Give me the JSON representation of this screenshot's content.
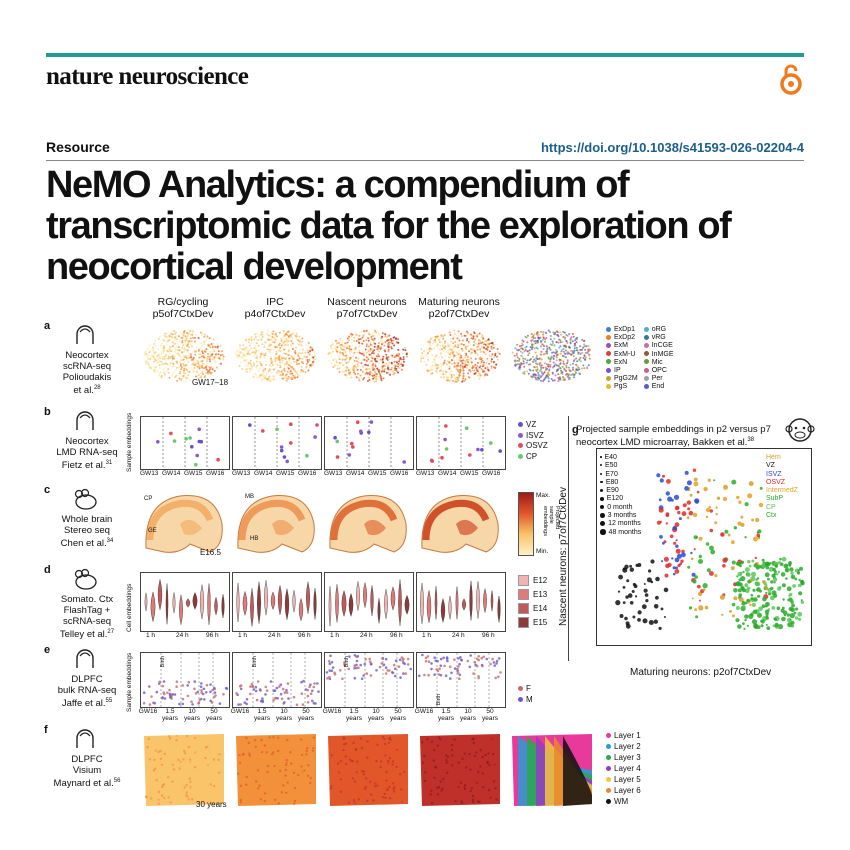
{
  "journal": "nature neuroscience",
  "section": "Resource",
  "doi": "https://doi.org/10.1038/s41593-026-02204-4",
  "title": "NeMO Analytics: a compendium of transcriptomic data for the exploration of neocortical development",
  "figure": {
    "columns": [
      {
        "l1": "RG/cycling",
        "l2": "p5of7CtxDev"
      },
      {
        "l1": "IPC",
        "l2": "p4of7CtxDev"
      },
      {
        "l1": "Nascent neurons",
        "l2": "p7of7CtxDev"
      },
      {
        "l1": "Maturing neurons",
        "l2": "p2of7CtxDev"
      }
    ],
    "rows": [
      {
        "panel": "a",
        "lines": [
          "Neocortex",
          "scRNA-seq",
          "Polioudakis",
          "et al."
        ],
        "ref": "28",
        "note": "GW17–18"
      },
      {
        "panel": "b",
        "lines": [
          "Neocortex",
          "LMD RNA-seq",
          "Fietz et al."
        ],
        "ref": "31",
        "ylabel": "Sample embeddings"
      },
      {
        "panel": "c",
        "lines": [
          "Whole brain",
          "Stereo seq",
          "Chen et al."
        ],
        "ref": "34",
        "note": "E16.5"
      },
      {
        "panel": "d",
        "lines": [
          "Somato. Ctx",
          "FlashTag +",
          "scRNA-seq",
          "Telley et al."
        ],
        "ref": "27",
        "ylabel": "Cell embeddings"
      },
      {
        "panel": "e",
        "lines": [
          "DLPFC",
          "bulk RNA-seq",
          "Jaffe et al."
        ],
        "ref": "55",
        "ylabel": "Sample embeddings"
      },
      {
        "panel": "f",
        "lines": [
          "DLPFC",
          "Visium",
          "Maynard et al."
        ],
        "ref": "56",
        "note": "30 years"
      }
    ],
    "a_legend": [
      "ExDp1",
      "ExDp2",
      "ExM",
      "ExM-U",
      "ExN",
      "IP",
      "PgG2M",
      "PgS",
      "oRG",
      "vRG",
      "InCGE",
      "InMGE",
      "Mic",
      "OPC",
      "Per",
      "End"
    ],
    "a_colors": [
      "#3b7dd8",
      "#e87e2a",
      "#9b4fb4",
      "#e23b3b",
      "#4aaa3a",
      "#7a4fc8",
      "#c4a23a",
      "#e8b92a",
      "#48b3c8",
      "#2f7a9b",
      "#c86f9b",
      "#8c5a3a",
      "#6a9b3a",
      "#d45a8c",
      "#a0a0a0",
      "#5a5ad4"
    ],
    "b_legend": [
      "VZ",
      "ISVZ",
      "OSVZ",
      "CP"
    ],
    "b_colors": [
      "#6a4fc8",
      "#8c5ac8",
      "#e84a5a",
      "#6ac86a"
    ],
    "b_ticks": [
      "GW13",
      "GW14",
      "GW15",
      "GW16"
    ],
    "c_scale": {
      "max": "Max.",
      "min": "Min.",
      "label": "Projected sample embeddings"
    },
    "c_regions": [
      "CP",
      "MB",
      "HB",
      "GE"
    ],
    "d_legend": [
      "E12",
      "E13",
      "E14",
      "E15"
    ],
    "d_colors": [
      "#f2b3b3",
      "#e07a7a",
      "#c05a5a",
      "#8c3a3a"
    ],
    "d_ticks": [
      "1 h",
      "24 h",
      "96 h"
    ],
    "e_legend": [
      "F",
      "M"
    ],
    "e_colors": [
      "#c86a6a",
      "#6a5ac8"
    ],
    "e_ticks": [
      "GW16",
      "1.5 years",
      "10 years",
      "50 years"
    ],
    "e_birth": "Birth",
    "f_legend": [
      "Layer 1",
      "Layer 2",
      "Layer 3",
      "Layer 4",
      "Layer 5",
      "Layer 6",
      "WM"
    ],
    "f_colors": [
      "#e83a9b",
      "#2a9bd4",
      "#2aa84a",
      "#9b3ac8",
      "#f0c83a",
      "#e88a2a",
      "#111111"
    ],
    "g": {
      "panel": "g",
      "title": "Projected sample embeddings in p2 versus p7",
      "subtitle": "neocortex LMD microarray, Bakken et al.",
      "ref": "38",
      "xlabel": "Maturing neurons: p2of7CtxDev",
      "ylabel": "Nascent neurons: p7of7CtxDev",
      "age_legend": [
        "E40",
        "E50",
        "E70",
        "E80",
        "E90",
        "E120",
        "0 month",
        "3 months",
        "12 months",
        "48 months"
      ],
      "region_legend": [
        "Hem",
        "VZ",
        "ISVZ",
        "OSVZ",
        "IntermedZ",
        "SubP",
        "CP",
        "Ctx"
      ],
      "region_colors": [
        "#d4a02a",
        "#111111",
        "#2a4ad4",
        "#e02a2a",
        "#e8a020",
        "#28b028",
        "#58c858",
        "#2aa82a"
      ]
    }
  }
}
